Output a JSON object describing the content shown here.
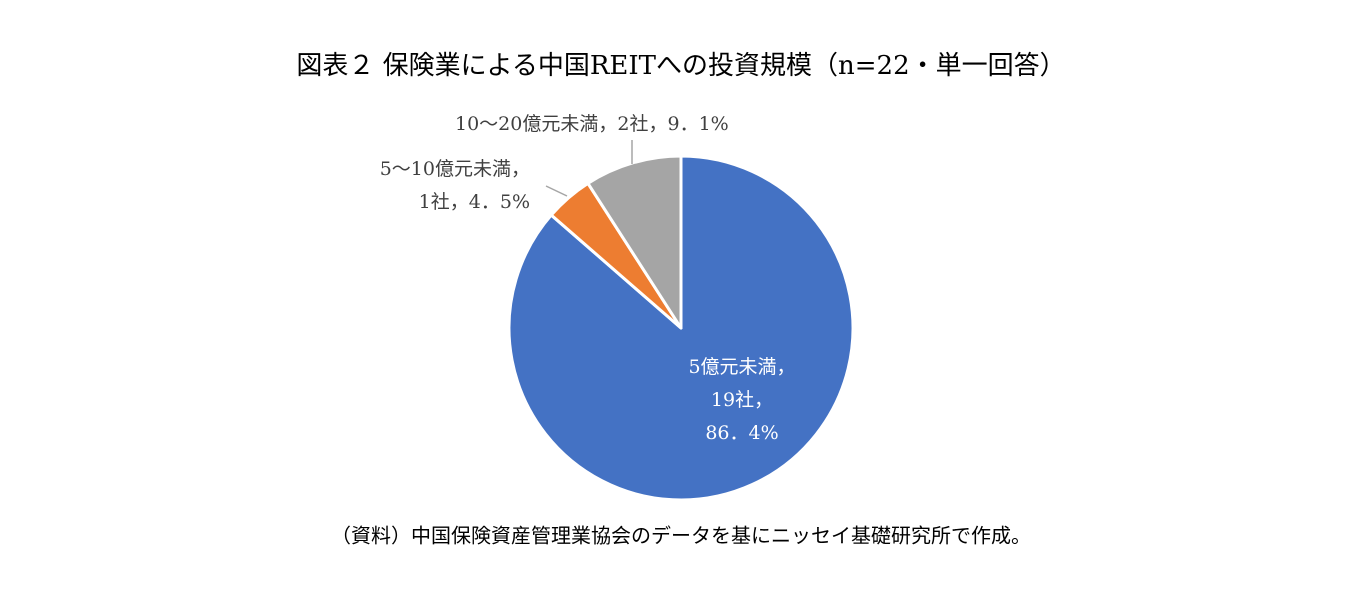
{
  "chart_data": {
    "type": "pie",
    "title": "図表２ 保険業による中国REITへの投資規模（n=22・単一回答）",
    "categories": [
      "5億元未満",
      "5～10億元未満",
      "10～20億元未満"
    ],
    "count_labels": [
      "19社",
      "1社",
      "2社"
    ],
    "values": [
      86.4,
      4.5,
      9.1
    ],
    "value_labels": [
      "86．4%",
      "4．5%",
      "9．1%"
    ],
    "label_separator": "，",
    "colors": [
      "#4472c4",
      "#ed7d31",
      "#a5a5a5"
    ],
    "note": "（資料）中国保険資産管理業協会のデータを基にニッセイ基礎研究所で作成。"
  }
}
